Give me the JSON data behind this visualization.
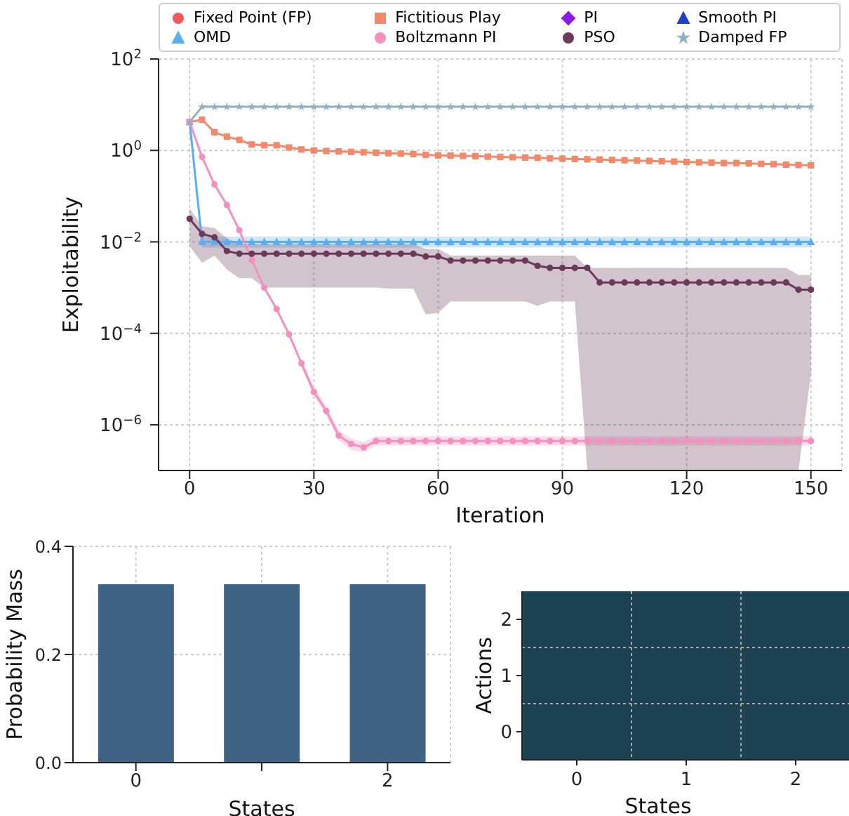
{
  "chart_data": [
    {
      "type": "line",
      "xlabel": "Iteration",
      "ylabel": "Exploitability",
      "log": "y",
      "grid": true,
      "legend": "top",
      "x": [
        0,
        3,
        6,
        9,
        12,
        15,
        18,
        21,
        24,
        27,
        30,
        33,
        36,
        39,
        42,
        45,
        48,
        51,
        54,
        57,
        60,
        63,
        66,
        69,
        72,
        75,
        78,
        81,
        84,
        87,
        90,
        93,
        96,
        99,
        102,
        105,
        108,
        111,
        114,
        117,
        120,
        123,
        126,
        129,
        132,
        135,
        138,
        141,
        144,
        147,
        150
      ],
      "xlim": [
        -7.5,
        157.5
      ],
      "xticks": [
        0,
        30,
        60,
        90,
        120,
        150
      ],
      "ylim": [
        1e-07,
        100
      ],
      "yticks": [
        {
          "value": 1e-06,
          "label": "10$^{−6}$"
        },
        {
          "value": 0.0001,
          "label": "10$^{−4}$"
        },
        {
          "value": 0.01,
          "label": "10$^{−2}$"
        },
        {
          "value": 1,
          "label": "10$^{0}$"
        },
        {
          "value": 100,
          "label": "10$^{2}$"
        }
      ],
      "series": [
        {
          "name": "Fixed Point (FP)",
          "color": "#f05a5a",
          "marker": "circle",
          "values": [
            null,
            null,
            null,
            null,
            null,
            null,
            null,
            null,
            null,
            null,
            null,
            null,
            null,
            null,
            null,
            null,
            null,
            null,
            null,
            null,
            null,
            null,
            null,
            null,
            null,
            null,
            null,
            null,
            null,
            null,
            null,
            null,
            null,
            null,
            null,
            null,
            null,
            null,
            null,
            null,
            null,
            null,
            null,
            null,
            null,
            null,
            null,
            null,
            null,
            null,
            null
          ]
        },
        {
          "name": "Fictitious Play",
          "color": "#f08a6a",
          "marker": "square",
          "values": [
            4.2,
            4.7,
            2.5,
            2.0,
            1.7,
            1.35,
            1.3,
            1.3,
            1.16,
            1.05,
            1.0,
            0.97,
            0.95,
            0.93,
            0.91,
            0.89,
            0.87,
            0.85,
            0.83,
            0.8,
            0.78,
            0.77,
            0.76,
            0.75,
            0.73,
            0.72,
            0.71,
            0.7,
            0.69,
            0.67,
            0.66,
            0.65,
            0.64,
            0.63,
            0.62,
            0.61,
            0.6,
            0.59,
            0.58,
            0.57,
            0.56,
            0.55,
            0.54,
            0.53,
            0.53,
            0.52,
            0.51,
            0.5,
            0.49,
            0.48,
            0.47
          ]
        },
        {
          "name": "PI",
          "color": "#8b1ae8",
          "marker": "diamond",
          "values": [
            null,
            null,
            null,
            null,
            null,
            null,
            null,
            null,
            null,
            null,
            null,
            null,
            null,
            null,
            null,
            null,
            null,
            null,
            null,
            null,
            null,
            null,
            null,
            null,
            null,
            null,
            null,
            null,
            null,
            null,
            null,
            null,
            null,
            null,
            null,
            null,
            null,
            null,
            null,
            null,
            null,
            null,
            null,
            null,
            null,
            null,
            null,
            null,
            null,
            null,
            null
          ]
        },
        {
          "name": "Smooth PI",
          "color": "#1f3fc8",
          "marker": "triangle",
          "values": [
            null,
            null,
            null,
            null,
            null,
            null,
            null,
            null,
            null,
            null,
            null,
            null,
            null,
            null,
            null,
            null,
            null,
            null,
            null,
            null,
            null,
            null,
            null,
            null,
            null,
            null,
            null,
            null,
            null,
            null,
            null,
            null,
            null,
            null,
            null,
            null,
            null,
            null,
            null,
            null,
            null,
            null,
            null,
            null,
            null,
            null,
            null,
            null,
            null,
            null,
            null
          ]
        },
        {
          "name": "OMD",
          "color": "#5aaef0",
          "marker": "triangle",
          "values": [
            4.2,
            0.01,
            0.01,
            0.01,
            0.01,
            0.01,
            0.01,
            0.01,
            0.01,
            0.01,
            0.01,
            0.01,
            0.01,
            0.01,
            0.01,
            0.01,
            0.01,
            0.01,
            0.01,
            0.01,
            0.01,
            0.01,
            0.01,
            0.01,
            0.01,
            0.01,
            0.01,
            0.01,
            0.01,
            0.01,
            0.01,
            0.01,
            0.01,
            0.01,
            0.01,
            0.01,
            0.01,
            0.01,
            0.01,
            0.01,
            0.01,
            0.01,
            0.01,
            0.01,
            0.01,
            0.01,
            0.01,
            0.01,
            0.01,
            0.01,
            0.01
          ],
          "lower": [
            null,
            0.0075,
            0.0075,
            0.0075,
            0.0075,
            0.0075,
            0.0075,
            0.0075,
            0.0075,
            0.0075,
            0.0075,
            0.0075,
            0.0075,
            0.0075,
            0.0075,
            0.0075,
            0.0075,
            0.0075,
            0.0075,
            0.0075,
            0.0075,
            0.0075,
            0.0075,
            0.0075,
            0.0075,
            0.0075,
            0.0075,
            0.0075,
            0.0075,
            0.0075,
            0.0075,
            0.0075,
            0.0075,
            0.0075,
            0.0075,
            0.0075,
            0.0075,
            0.0075,
            0.0075,
            0.0075,
            0.0075,
            0.0075,
            0.0075,
            0.0075,
            0.0075,
            0.0075,
            0.0075,
            0.0075,
            0.0075,
            0.0075,
            0.0075
          ],
          "upper": [
            null,
            0.013,
            0.013,
            0.013,
            0.013,
            0.013,
            0.013,
            0.013,
            0.013,
            0.013,
            0.013,
            0.013,
            0.013,
            0.013,
            0.013,
            0.013,
            0.013,
            0.013,
            0.013,
            0.013,
            0.013,
            0.013,
            0.013,
            0.013,
            0.013,
            0.013,
            0.013,
            0.013,
            0.013,
            0.013,
            0.013,
            0.013,
            0.013,
            0.013,
            0.013,
            0.013,
            0.013,
            0.013,
            0.013,
            0.013,
            0.013,
            0.013,
            0.013,
            0.013,
            0.013,
            0.013,
            0.013,
            0.013,
            0.013,
            0.013,
            0.013
          ]
        },
        {
          "name": "Boltzmann PI",
          "color": "#f58fbf",
          "marker": "circle",
          "values": [
            4.2,
            0.72,
            0.18,
            0.064,
            0.018,
            0.004,
            0.001,
            0.00034,
            9.5e-05,
            2.2e-05,
            5.2e-06,
            2e-06,
            5.8e-07,
            3.8e-07,
            3.2e-07,
            4.4e-07,
            4.4e-07,
            4.4e-07,
            4.4e-07,
            4.4e-07,
            4.4e-07,
            4.4e-07,
            4.4e-07,
            4.4e-07,
            4.4e-07,
            4.4e-07,
            4.4e-07,
            4.4e-07,
            4.4e-07,
            4.4e-07,
            4.4e-07,
            4.4e-07,
            4.4e-07,
            4.4e-07,
            4.4e-07,
            4.4e-07,
            4.4e-07,
            4.4e-07,
            4.4e-07,
            4.4e-07,
            4.4e-07,
            4.4e-07,
            4.4e-07,
            4.4e-07,
            4.4e-07,
            4.4e-07,
            4.4e-07,
            4.4e-07,
            4.4e-07,
            4.4e-07,
            4.4e-07
          ],
          "lower": [
            null,
            null,
            null,
            null,
            null,
            null,
            null,
            null,
            null,
            1.8e-05,
            4.2e-06,
            1.6e-06,
            4.5e-07,
            2.8e-07,
            2.5e-07,
            3.5e-07,
            3.5e-07,
            3.5e-07,
            3.5e-07,
            3.5e-07,
            3.5e-07,
            3.5e-07,
            3.5e-07,
            3.5e-07,
            3.5e-07,
            3.5e-07,
            3.5e-07,
            3.5e-07,
            3.5e-07,
            3.5e-07,
            3.5e-07,
            3.5e-07,
            3.5e-07,
            3.5e-07,
            3.5e-07,
            3.5e-07,
            3.5e-07,
            3.5e-07,
            3.5e-07,
            3.5e-07,
            3.5e-07,
            3.5e-07,
            3.5e-07,
            3.5e-07,
            3.5e-07,
            3.5e-07,
            3.5e-07,
            3.5e-07,
            3.5e-07,
            3.5e-07,
            3.5e-07
          ],
          "upper": [
            null,
            null,
            null,
            null,
            null,
            null,
            null,
            null,
            null,
            2.9e-05,
            6.8e-06,
            2.6e-06,
            7.5e-07,
            5e-07,
            4.2e-07,
            5.6e-07,
            5.6e-07,
            5.6e-07,
            5.6e-07,
            5.6e-07,
            5.6e-07,
            5.6e-07,
            5.6e-07,
            5.6e-07,
            5.6e-07,
            5.6e-07,
            5.6e-07,
            5.6e-07,
            5.6e-07,
            5.6e-07,
            5.6e-07,
            5.6e-07,
            5.6e-07,
            5.6e-07,
            5.6e-07,
            5.6e-07,
            5.6e-07,
            5.6e-07,
            5.6e-07,
            5.6e-07,
            5.6e-07,
            5.6e-07,
            5.6e-07,
            5.6e-07,
            5.6e-07,
            5.6e-07,
            5.6e-07,
            5.6e-07,
            5.6e-07,
            5.6e-07,
            5.6e-07
          ]
        },
        {
          "name": "PSO",
          "color": "#6b3a5b",
          "marker": "circle",
          "values": [
            0.032,
            0.015,
            0.0126,
            0.0063,
            0.0055,
            0.0055,
            0.0055,
            0.0055,
            0.0055,
            0.0055,
            0.0055,
            0.0055,
            0.0055,
            0.0055,
            0.0055,
            0.0055,
            0.0055,
            0.0055,
            0.0055,
            0.0048,
            0.0048,
            0.0039,
            0.0039,
            0.0039,
            0.0039,
            0.0039,
            0.0039,
            0.0039,
            0.003,
            0.0027,
            0.0027,
            0.0027,
            0.0027,
            0.0013,
            0.0013,
            0.0013,
            0.0013,
            0.0013,
            0.0013,
            0.0013,
            0.0013,
            0.0013,
            0.0013,
            0.0013,
            0.0013,
            0.0013,
            0.0013,
            0.0013,
            0.0013,
            0.0009,
            0.0009
          ],
          "lower": [
            0.008,
            0.0035,
            0.005,
            0.0025,
            0.0016,
            0.0016,
            0.001,
            0.001,
            0.001,
            0.001,
            0.001,
            0.001,
            0.001,
            0.001,
            0.001,
            0.001,
            0.00095,
            0.00095,
            0.00095,
            0.00026,
            0.00028,
            0.0005,
            0.0005,
            0.0005,
            0.0005,
            0.0005,
            0.0005,
            0.0005,
            0.0004,
            0.0005,
            0.0005,
            0.0005,
            1e-07,
            1e-07,
            1e-07,
            1e-07,
            1e-07,
            1e-07,
            1e-07,
            1e-07,
            1e-07,
            1e-07,
            1e-07,
            1e-07,
            1e-07,
            1e-07,
            1e-07,
            1e-07,
            1e-07,
            1e-07,
            1.3e-05
          ],
          "upper": [
            0.054,
            0.022,
            0.02,
            0.012,
            0.0089,
            0.0089,
            0.0089,
            0.0089,
            0.0089,
            0.0089,
            0.0089,
            0.0089,
            0.0089,
            0.0089,
            0.0089,
            0.0089,
            0.0089,
            0.0089,
            0.0089,
            0.007,
            0.007,
            0.005,
            0.005,
            0.005,
            0.005,
            0.005,
            0.005,
            0.005,
            0.005,
            0.005,
            0.005,
            0.005,
            0.0027,
            0.0027,
            0.0027,
            0.0027,
            0.0027,
            0.0027,
            0.0027,
            0.0027,
            0.0027,
            0.0027,
            0.0027,
            0.0027,
            0.0027,
            0.0027,
            0.0027,
            0.0027,
            0.0027,
            0.0019,
            0.0019
          ]
        },
        {
          "name": "Damped FP",
          "color": "#8fb0c0",
          "marker": "star",
          "values": [
            4.2,
            9,
            9,
            9,
            9,
            9,
            9,
            9,
            9,
            9,
            9,
            9,
            9,
            9,
            9,
            9,
            9,
            9,
            9,
            9,
            9,
            9,
            9,
            9,
            9,
            9,
            9,
            9,
            9,
            9,
            9,
            9,
            9,
            9,
            9,
            9,
            9,
            9,
            9,
            9,
            9,
            9,
            9,
            9,
            9,
            9,
            9,
            9,
            9,
            9,
            9
          ]
        }
      ]
    },
    {
      "type": "bar",
      "xlabel": "States",
      "ylabel": "Probability Mass",
      "categories": [
        "0",
        null,
        "2"
      ],
      "values": [
        0.33,
        0.33,
        0.33
      ],
      "color": "#3f6384",
      "ylim": [
        0,
        0.4
      ],
      "yticks": [
        {
          "value": 0,
          "label": "0.0"
        },
        0.2,
        0.4
      ],
      "grid": true
    },
    {
      "type": "other",
      "xlabel": "States",
      "ylabel": "Actions",
      "categories": [
        "0",
        "1",
        "2"
      ],
      "y_categories": [
        "2",
        "1",
        "0"
      ],
      "color": "#1c4254"
    }
  ]
}
